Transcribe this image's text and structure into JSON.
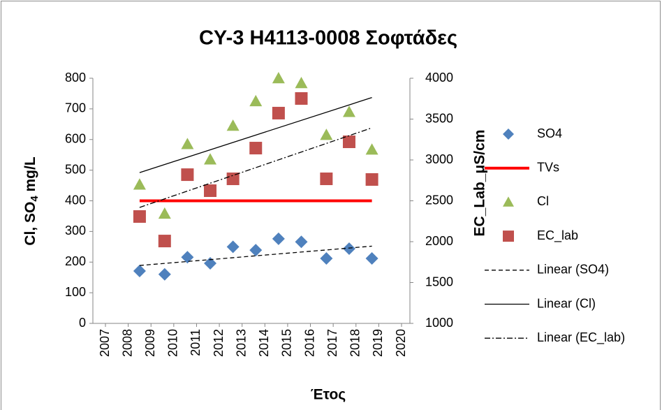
{
  "chart_data": {
    "type": "scatter",
    "title": "CY-3 H4113-0008 Σοφτάδες",
    "x_label": "Έτος",
    "y_label_parts": [
      "Cl, SO",
      "4",
      " mg/L"
    ],
    "y2_label": "EC_Lab_μS/cm",
    "x": [
      2008.5,
      2009.6,
      2010.6,
      2011.6,
      2012.6,
      2013.6,
      2014.6,
      2015.6,
      2016.7,
      2017.7,
      2018.7
    ],
    "xlim": [
      2007,
      2020
    ],
    "xticks": [
      2007,
      2008,
      2009,
      2010,
      2011,
      2012,
      2013,
      2014,
      2015,
      2016,
      2017,
      2018,
      2019,
      2020
    ],
    "ylim": [
      0,
      800
    ],
    "yticks": [
      0,
      100,
      200,
      300,
      400,
      500,
      600,
      700,
      800
    ],
    "y2lim": [
      1000,
      4000
    ],
    "y2ticks": [
      1000,
      1500,
      2000,
      2500,
      3000,
      3500,
      4000
    ],
    "grid": false,
    "legend": "right",
    "series": [
      {
        "name": "SO4",
        "color": "#4f81bd",
        "marker": "diamond",
        "values": [
          171,
          160,
          216,
          196,
          250,
          239,
          276,
          266,
          212,
          244,
          212
        ]
      },
      {
        "name": "TVs",
        "color": "#ff0000",
        "line": "solid",
        "width": 4,
        "x": [
          2008.5,
          2018.7
        ],
        "values": [
          400,
          400
        ]
      },
      {
        "name": "Cl",
        "color": "#9bbb59",
        "marker": "triangle",
        "values": [
          453,
          358,
          585,
          535,
          645,
          725,
          800,
          784,
          615,
          690,
          567
        ]
      },
      {
        "name": "EC_lab",
        "color": "#c0504d",
        "marker": "square",
        "axis": "y2",
        "values": [
          2308,
          2008,
          2820,
          2624,
          2769,
          3145,
          3573,
          3752,
          2769,
          3222,
          2761
        ]
      },
      {
        "name": "Linear (SO4)",
        "color": "#000000",
        "line": "dashed",
        "width": 1.3,
        "x": [
          2008.5,
          2018.7
        ],
        "values": [
          189,
          252
        ]
      },
      {
        "name": "Linear (Cl)",
        "color": "#000000",
        "line": "solid",
        "width": 1.3,
        "x": [
          2008.5,
          2018.7
        ],
        "values": [
          492,
          737
        ]
      },
      {
        "name": "Linear (EC_lab)",
        "color": "#000000",
        "line": "dashdot",
        "width": 1.3,
        "axis": "y2",
        "x": [
          2008.5,
          2018.7
        ],
        "values": [
          2419,
          3393
        ]
      }
    ]
  }
}
